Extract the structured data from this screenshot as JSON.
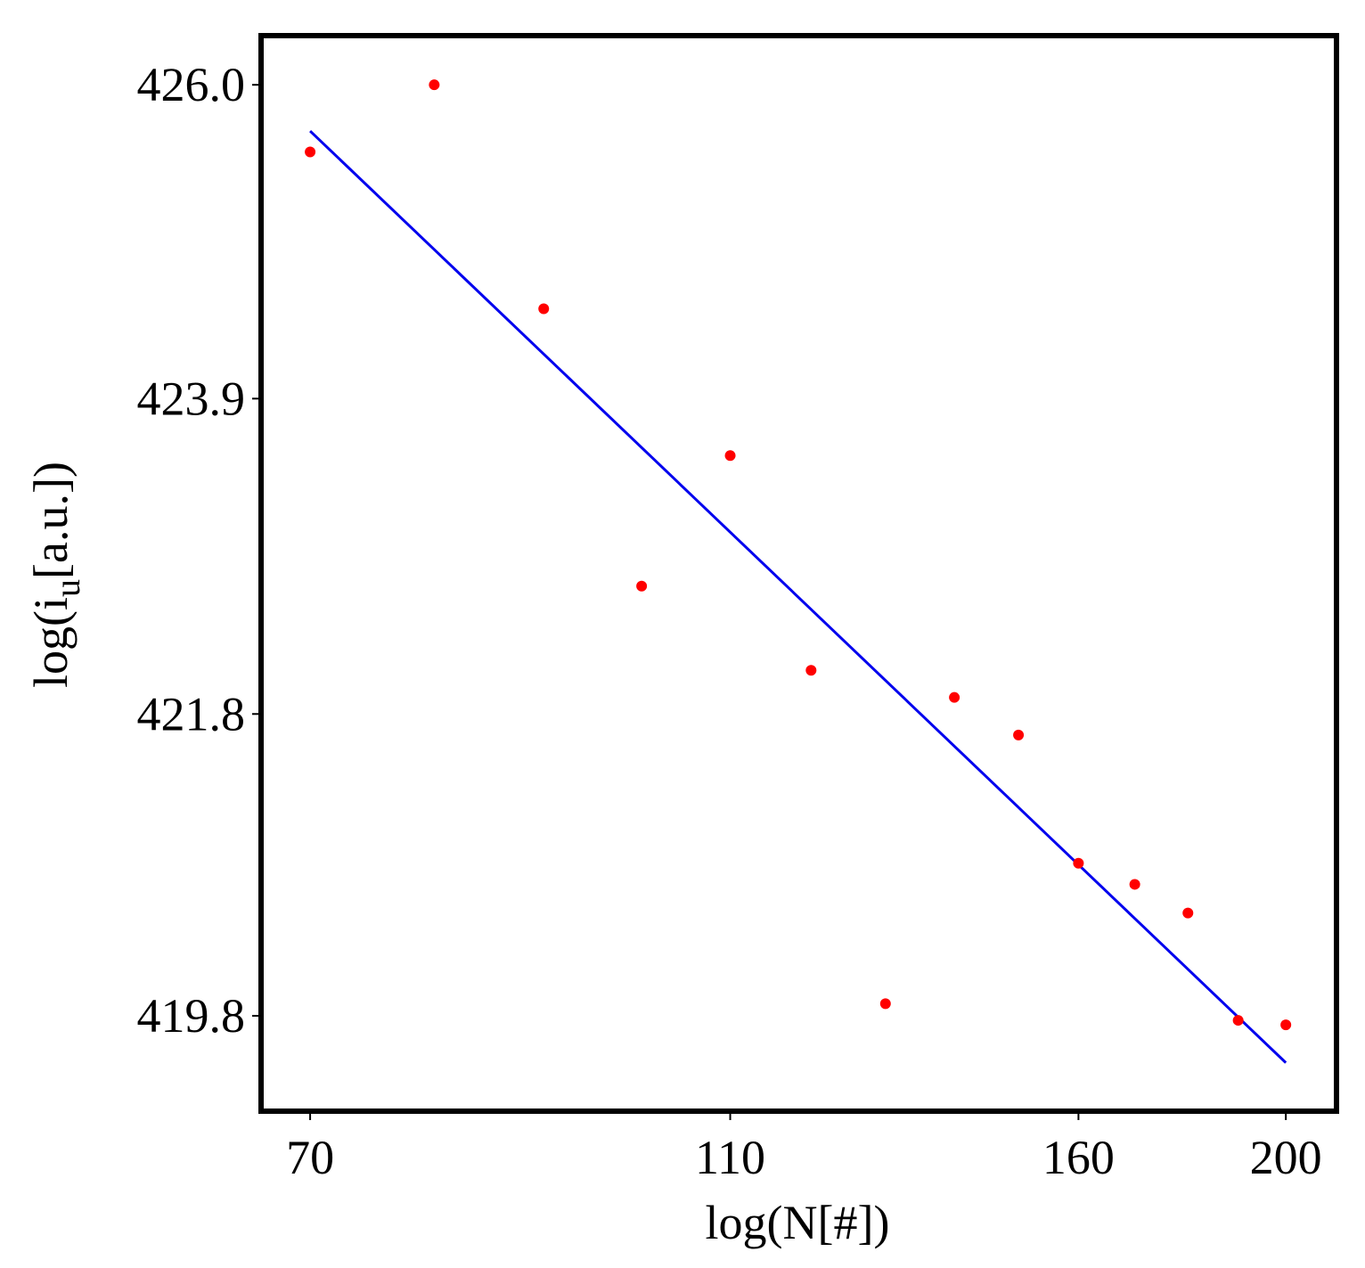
{
  "chart_data": {
    "type": "scatter",
    "xlabel": "log(N[#])",
    "ylabel": [
      "log(i",
      "u",
      "[a.u.])"
    ],
    "xscale": "log",
    "yscale": "log",
    "xlim": [
      66.4,
      211.2
    ],
    "ylim": [
      419.17,
      426.33
    ],
    "xticks": [
      70,
      110,
      160,
      200
    ],
    "yticks": [
      {
        "value": 426,
        "label": "426.0"
      },
      423.9,
      421.8,
      419.8
    ],
    "series": [
      {
        "type": "scatter",
        "color": "#ff0000",
        "x": [
          70,
          80,
          90,
          100,
          110,
          120,
          130,
          140,
          150,
          160,
          170,
          180,
          190,
          200
        ],
        "values": [
          425.55,
          426.0,
          424.5,
          422.65,
          423.52,
          422.09,
          419.88,
          421.91,
          421.66,
          420.81,
          420.67,
          420.48,
          419.77,
          419.74
        ]
      },
      {
        "type": "line",
        "color": "#0000ee",
        "x": [
          70,
          200
        ],
        "values": [
          425.69,
          419.49
        ]
      }
    ]
  }
}
